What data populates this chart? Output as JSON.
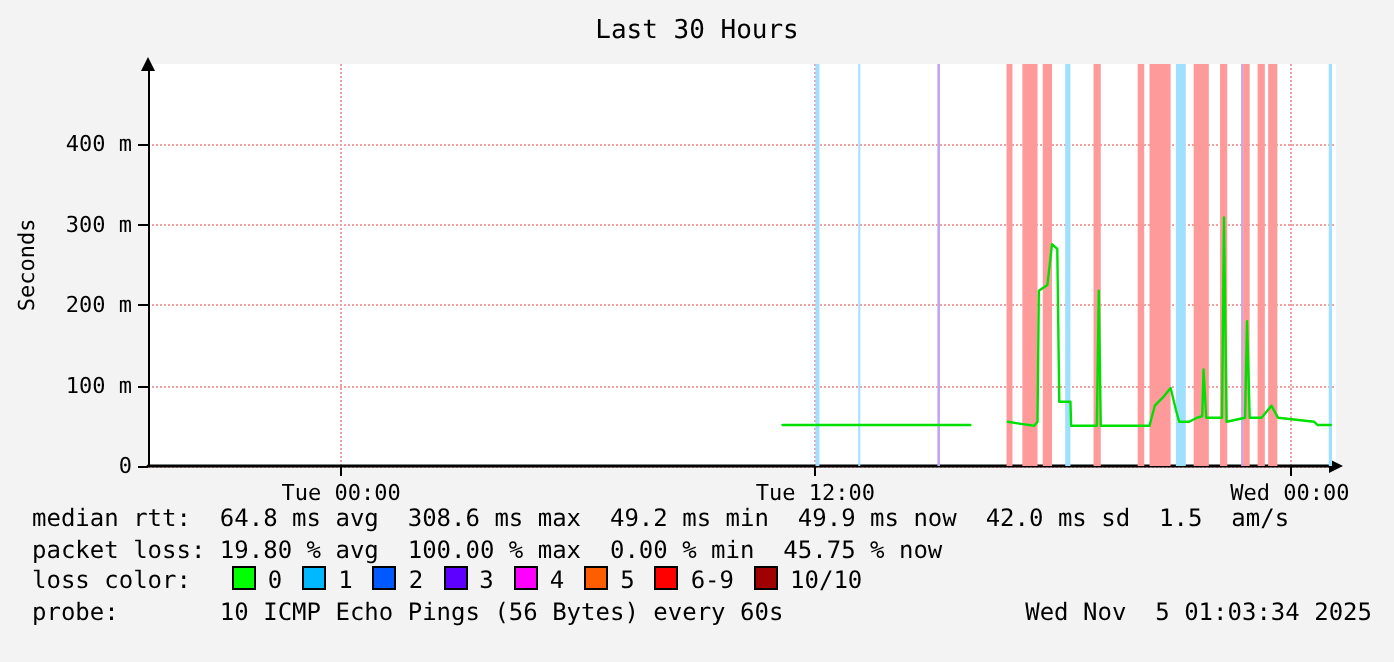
{
  "chart_data": {
    "type": "line",
    "title": "Last 30 Hours",
    "ylabel": "Seconds",
    "x": [
      "2025-11-04T11:10",
      "2025-11-04T15:55",
      "2025-11-04T16:22",
      "2025-11-04T16:52",
      "2025-11-04T17:07",
      "2025-11-04T17:32",
      "2025-11-04T17:37",
      "2025-11-04T17:39",
      "2025-11-04T17:52",
      "2025-11-04T17:59",
      "2025-11-04T18:07",
      "2025-11-04T18:10",
      "2025-11-04T18:27",
      "2025-11-04T18:28",
      "2025-11-04T19:02",
      "2025-11-04T19:07",
      "2025-11-04T19:10",
      "2025-11-04T19:13",
      "2025-11-04T20:27",
      "2025-11-04T20:35",
      "2025-11-04T20:47",
      "2025-11-04T20:59",
      "2025-11-04T21:07",
      "2025-11-04T21:12",
      "2025-11-04T21:27",
      "2025-11-04T21:39",
      "2025-11-04T21:47",
      "2025-11-04T21:49",
      "2025-11-04T21:53",
      "2025-11-04T22:17",
      "2025-11-04T22:20",
      "2025-11-04T22:24",
      "2025-11-04T22:52",
      "2025-11-04T22:55",
      "2025-11-04T22:59",
      "2025-11-04T23:17",
      "2025-11-04T23:32",
      "2025-11-04T23:42",
      "2025-11-05T00:37",
      "2025-11-05T00:42",
      "2025-11-05T01:02"
    ],
    "series": [
      {
        "color": "#00e000",
        "values": [
          51,
          51,
          null,
          55,
          53,
          50,
          55,
          218,
          225,
          276,
          270,
          80,
          80,
          50,
          50,
          50,
          218,
          50,
          50,
          75,
          85,
          97,
          70,
          55,
          55,
          60,
          62,
          120,
          60,
          60,
          309,
          55,
          60,
          180,
          60,
          60,
          75,
          60,
          55,
          51,
          51
        ]
      }
    ],
    "xlim": [
      "2025-11-03T19:07",
      "2025-11-05T01:10"
    ],
    "xticks": [
      {
        "value": "2025-11-04T00:00",
        "label": "Tue 00:00"
      },
      {
        "value": "2025-11-04T12:00",
        "label": "Tue 12:00"
      },
      {
        "value": "2025-11-05T00:00",
        "label": "Wed 00:00"
      }
    ],
    "ylim": [
      0,
      500
    ],
    "yticks": [
      0,
      {
        "value": 100,
        "label": "100 m"
      },
      {
        "value": 200,
        "label": "200 m"
      },
      {
        "value": 300,
        "label": "300 m"
      },
      {
        "value": 400,
        "label": "400 m"
      }
    ],
    "bands": [
      {
        "axis": "x",
        "from": "2025-11-04T12:00",
        "to": "2025-11-04T12:06",
        "color": "#a0e0ff"
      },
      {
        "axis": "x",
        "from": "2025-11-04T13:05",
        "to": "2025-11-04T13:08",
        "color": "#a0e0ff"
      },
      {
        "axis": "x",
        "from": "2025-11-04T15:05",
        "to": "2025-11-04T15:09",
        "color": "#c0a8f0"
      },
      {
        "axis": "x",
        "from": "2025-11-04T16:50",
        "to": "2025-11-04T16:59",
        "color": "#ff9a9a"
      },
      {
        "axis": "x",
        "from": "2025-11-04T17:14",
        "to": "2025-11-04T17:37",
        "color": "#ff9a9a"
      },
      {
        "axis": "x",
        "from": "2025-11-04T17:45",
        "to": "2025-11-04T17:59",
        "color": "#ff9a9a"
      },
      {
        "axis": "x",
        "from": "2025-11-04T18:19",
        "to": "2025-11-04T18:27",
        "color": "#a0e0ff"
      },
      {
        "axis": "x",
        "from": "2025-11-04T19:02",
        "to": "2025-11-04T19:13",
        "color": "#ff9a9a"
      },
      {
        "axis": "x",
        "from": "2025-11-04T20:09",
        "to": "2025-11-04T20:19",
        "color": "#ff9a9a"
      },
      {
        "axis": "x",
        "from": "2025-11-04T20:27",
        "to": "2025-11-04T20:59",
        "color": "#ff9a9a"
      },
      {
        "axis": "x",
        "from": "2025-11-04T21:07",
        "to": "2025-11-04T21:22",
        "color": "#a0e0ff"
      },
      {
        "axis": "x",
        "from": "2025-11-04T21:34",
        "to": "2025-11-04T21:57",
        "color": "#ff9a9a"
      },
      {
        "axis": "x",
        "from": "2025-11-04T22:14",
        "to": "2025-11-04T22:25",
        "color": "#ff9a9a"
      },
      {
        "axis": "x",
        "from": "2025-11-04T22:46",
        "to": "2025-11-04T22:49",
        "color": "#c0a8f0"
      },
      {
        "axis": "x",
        "from": "2025-11-04T22:49",
        "to": "2025-11-04T22:59",
        "color": "#ff9a9a"
      },
      {
        "axis": "x",
        "from": "2025-11-04T23:11",
        "to": "2025-11-04T23:22",
        "color": "#ff9a9a"
      },
      {
        "axis": "x",
        "from": "2025-11-04T23:27",
        "to": "2025-11-04T23:41",
        "color": "#ff9a9a"
      },
      {
        "axis": "x",
        "from": "2025-11-05T00:59",
        "to": "2025-11-05T01:04",
        "color": "#a0e0ff"
      }
    ],
    "grid": true,
    "marker": "none",
    "line_style": "solid",
    "annotations": [
      "median rtt:  64.8 ms avg  308.6 ms max  49.2 ms min  49.9 ms now  42.0 ms sd  1.5  am/s",
      "packet loss: 19.80 % avg  100.00 % max  0.00 % min  45.75 % now",
      "loss color:",
      "0",
      "1",
      "2",
      "3",
      "4",
      "5",
      "6-9",
      "10/10",
      "probe:       10 ICMP Echo Pings (56 Bytes) every 60s",
      "Wed Nov  5 01:03:34 2025"
    ]
  }
}
